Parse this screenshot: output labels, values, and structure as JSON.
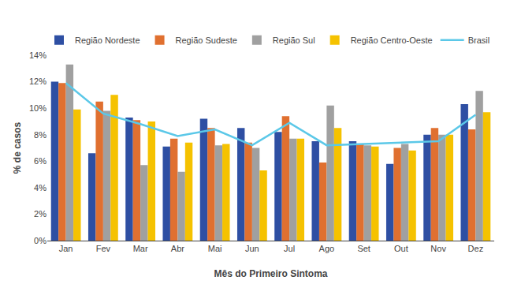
{
  "chart_data": {
    "type": "bar",
    "xlabel": "Mês do Primeiro Sintoma",
    "ylabel": "% de casos",
    "categories": [
      "Jan",
      "Fev",
      "Mar",
      "Abr",
      "Mai",
      "Jun",
      "Jul",
      "Ago",
      "Set",
      "Out",
      "Nov",
      "Dez"
    ],
    "series": [
      {
        "name": "Região Nordeste",
        "color": "#2e4fa3",
        "values": [
          12.0,
          6.6,
          9.3,
          7.1,
          9.2,
          8.5,
          8.2,
          7.5,
          7.5,
          5.8,
          8.0,
          10.3
        ]
      },
      {
        "name": "Região Sudeste",
        "color": "#e07030",
        "values": [
          11.9,
          10.5,
          9.1,
          7.7,
          8.5,
          7.4,
          9.4,
          5.9,
          7.3,
          7.0,
          8.5,
          8.4
        ]
      },
      {
        "name": "Região Sul",
        "color": "#a0a0a0",
        "values": [
          13.3,
          9.8,
          5.7,
          5.2,
          7.2,
          7.0,
          7.7,
          10.2,
          7.2,
          7.3,
          8.0,
          11.3
        ]
      },
      {
        "name": "Região Centro-Oeste",
        "color": "#f5c200",
        "values": [
          9.9,
          11.0,
          9.0,
          7.4,
          7.3,
          5.3,
          7.7,
          8.5,
          7.1,
          6.8,
          8.0,
          9.7
        ]
      },
      {
        "name": "Brasil",
        "type": "line",
        "color": "#5bc8e8",
        "values": [
          11.9,
          9.6,
          8.8,
          7.9,
          8.4,
          7.2,
          8.9,
          7.2,
          7.3,
          7.4,
          7.5,
          9.5
        ]
      }
    ],
    "ylim": [
      0,
      14
    ],
    "yticks": [
      {
        "value": 0,
        "label": "0%"
      },
      {
        "value": 2,
        "label": "2%"
      },
      {
        "value": 4,
        "label": "4%"
      },
      {
        "value": 6,
        "label": "6%"
      },
      {
        "value": 8,
        "label": "8%"
      },
      {
        "value": 10,
        "label": "10%"
      },
      {
        "value": 12,
        "label": "12%"
      },
      {
        "value": 14,
        "label": "14%"
      }
    ],
    "grid": false,
    "legend": "upper right"
  }
}
